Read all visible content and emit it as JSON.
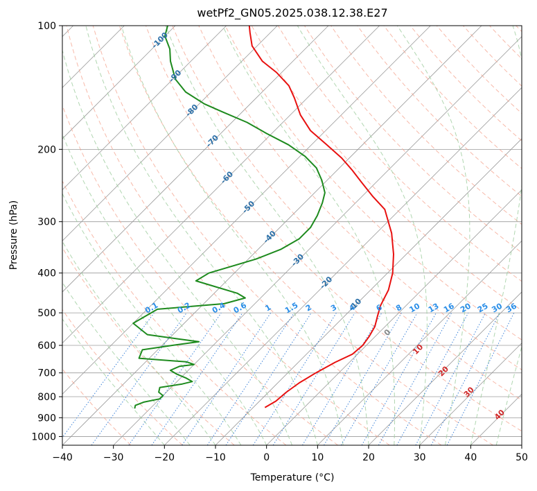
{
  "chart_data": {
    "type": "line",
    "chart_kind": "skew-t log-p",
    "title": "wetPf2_GN05.2025.038.12.38.E27",
    "xlabel": "Temperature (°C)",
    "ylabel": "Pressure (hPa)",
    "xlim": [
      -40,
      50
    ],
    "ylim": [
      1050,
      100
    ],
    "y_scale": "log",
    "grid": true,
    "x_ticks": [
      "−40",
      "−30",
      "−20",
      "−10",
      "0",
      "10",
      "20",
      "30",
      "40",
      "50"
    ],
    "y_ticks": [
      "100",
      "200",
      "300",
      "400",
      "500",
      "600",
      "700",
      "800",
      "900",
      "1000"
    ],
    "series": [
      {
        "role": "temperature",
        "color": "#e8100f",
        "points": [
          [
            850,
            -7.7
          ],
          [
            820,
            -6.8
          ],
          [
            780,
            -6.5
          ],
          [
            740,
            -5.8
          ],
          [
            700,
            -4.5
          ],
          [
            660,
            -2.8
          ],
          [
            630,
            -1.0
          ],
          [
            600,
            -0.7
          ],
          [
            570,
            -1.2
          ],
          [
            540,
            -2.0
          ],
          [
            510,
            -3.5
          ],
          [
            480,
            -5.0
          ],
          [
            440,
            -6.5
          ],
          [
            400,
            -9.0
          ],
          [
            360,
            -12.5
          ],
          [
            320,
            -17.0
          ],
          [
            280,
            -23.0
          ],
          [
            260,
            -28.0
          ],
          [
            240,
            -33.0
          ],
          [
            225,
            -37.0
          ],
          [
            210,
            -41.5
          ],
          [
            195,
            -47.0
          ],
          [
            180,
            -53.0
          ],
          [
            165,
            -58.0
          ],
          [
            150,
            -62.5
          ],
          [
            140,
            -66.0
          ],
          [
            130,
            -71.0
          ],
          [
            122,
            -76.0
          ],
          [
            112,
            -81.0
          ],
          [
            104,
            -84.0
          ],
          [
            100,
            -85.5
          ]
        ]
      },
      {
        "role": "dewpoint",
        "color": "#1d8a1d",
        "points": [
          [
            855,
            -33.0
          ],
          [
            840,
            -33.5
          ],
          [
            825,
            -32.5
          ],
          [
            810,
            -30.0
          ],
          [
            795,
            -30.0
          ],
          [
            780,
            -31.5
          ],
          [
            760,
            -32.2
          ],
          [
            745,
            -28.5
          ],
          [
            735,
            -27.0
          ],
          [
            720,
            -29.0
          ],
          [
            705,
            -31.5
          ],
          [
            690,
            -33.5
          ],
          [
            675,
            -32.5
          ],
          [
            668,
            -30.0
          ],
          [
            658,
            -32.0
          ],
          [
            645,
            -42.0
          ],
          [
            615,
            -43.0
          ],
          [
            600,
            -38.0
          ],
          [
            588,
            -33.5
          ],
          [
            578,
            -38.5
          ],
          [
            565,
            -45.0
          ],
          [
            530,
            -50.0
          ],
          [
            490,
            -48.0
          ],
          [
            475,
            -36.0
          ],
          [
            460,
            -33.0
          ],
          [
            448,
            -35.5
          ],
          [
            432,
            -41.0
          ],
          [
            418,
            -46.0
          ],
          [
            400,
            -45.0
          ],
          [
            370,
            -38.5
          ],
          [
            350,
            -35.5
          ],
          [
            330,
            -34.0
          ],
          [
            310,
            -34.0
          ],
          [
            290,
            -35.0
          ],
          [
            270,
            -36.5
          ],
          [
            255,
            -38.0
          ],
          [
            238,
            -41.0
          ],
          [
            222,
            -44.5
          ],
          [
            208,
            -49.0
          ],
          [
            195,
            -54.5
          ],
          [
            183,
            -61.0
          ],
          [
            172,
            -67.0
          ],
          [
            162,
            -74.0
          ],
          [
            155,
            -79.0
          ],
          [
            145,
            -85.0
          ],
          [
            135,
            -89.5
          ],
          [
            122,
            -94.0
          ],
          [
            114,
            -96.5
          ],
          [
            106,
            -100.0
          ],
          [
            100,
            -101.5
          ]
        ]
      }
    ],
    "dry_adiabat_labels": [
      "-100",
      "-90",
      "-80",
      "-70",
      "-60",
      "-50",
      "-40",
      "-30",
      "-20",
      "-10"
    ],
    "moist_adiabat_labels": [
      "0",
      "10",
      "20",
      "30",
      "40"
    ],
    "mixing_ratio_labels": [
      "0.1",
      "0.2",
      "0.4",
      "0.6",
      "1",
      "1.5",
      "2",
      "3",
      "4",
      "6",
      "8",
      "10",
      "13",
      "16",
      "20",
      "25",
      "30",
      "36"
    ],
    "colors": {
      "temperature": "#e8100f",
      "dewpoint": "#1d8a1d",
      "isotherm": "#9a9a9a",
      "dry_adiabat": "#f4a28c",
      "moist_adiabat": "#9ccc9c",
      "mixing_ratio": "#3c82d8",
      "dry_label": "#2c70a8",
      "moist_label": "#d02828",
      "mixing_label": "#2a8ee8"
    }
  }
}
